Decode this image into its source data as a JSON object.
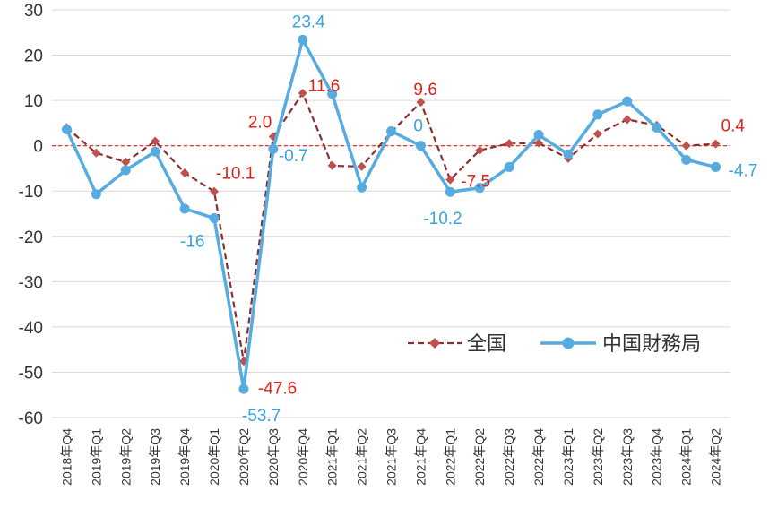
{
  "chart_data": {
    "type": "line",
    "title": "",
    "xlabel": "",
    "ylabel": "",
    "ylim": [
      -60,
      30
    ],
    "yticks": [
      30,
      20,
      10,
      0,
      -10,
      -20,
      -30,
      -40,
      -50,
      -60
    ],
    "grid": "horizontal",
    "legend_position": "bottom-right",
    "categories": [
      "2018年Q4",
      "2019年Q1",
      "2019年Q2",
      "2019年Q3",
      "2019年Q4",
      "2020年Q1",
      "2020年Q2",
      "2020年Q3",
      "2020年Q4",
      "2021年Q1",
      "2021年Q2",
      "2021年Q3",
      "2021年Q4",
      "2022年Q1",
      "2022年Q2",
      "2022年Q3",
      "2022年Q4",
      "2023年Q1",
      "2023年Q2",
      "2023年Q3",
      "2023年Q4",
      "2024年Q1",
      "2024年Q2"
    ],
    "series": [
      {
        "name": "全国",
        "color": "#8B2E2E",
        "marker_color": "#C0504D",
        "line_style": "dashed",
        "marker": "diamond",
        "label_color": "#E0201B",
        "values": [
          4.0,
          -1.6,
          -3.6,
          1.0,
          -6.0,
          -10.1,
          -47.6,
          2.0,
          11.6,
          -4.4,
          -4.6,
          3.0,
          9.6,
          -7.5,
          -1.0,
          0.5,
          0.6,
          -2.8,
          2.6,
          5.8,
          4.5,
          0.0,
          0.4
        ],
        "labels": [
          {
            "index": 5,
            "text": "-10.1"
          },
          {
            "index": 6,
            "text": "-47.6"
          },
          {
            "index": 7,
            "text": "2.0"
          },
          {
            "index": 8,
            "text": "11.6"
          },
          {
            "index": 12,
            "text": "9.6"
          },
          {
            "index": 13,
            "text": "-7.5"
          },
          {
            "index": 22,
            "text": "0.4"
          }
        ]
      },
      {
        "name": "中国財務局",
        "color": "#56ACE0",
        "line_style": "solid",
        "marker": "circle",
        "label_color": "#3AA3DC",
        "values": [
          3.6,
          -10.7,
          -5.4,
          -1.3,
          -13.9,
          -16.0,
          -53.7,
          -0.7,
          23.4,
          11.4,
          -9.2,
          3.2,
          0.0,
          -10.2,
          -9.3,
          -4.7,
          2.4,
          -1.9,
          6.9,
          9.8,
          4.0,
          -3.1,
          -4.7
        ],
        "labels": [
          {
            "index": 5,
            "text": "-16"
          },
          {
            "index": 6,
            "text": "-53.7"
          },
          {
            "index": 7,
            "text": "-0.7"
          },
          {
            "index": 8,
            "text": "23.4"
          },
          {
            "index": 12,
            "text": "0"
          },
          {
            "index": 13,
            "text": "-10.2"
          },
          {
            "index": 22,
            "text": "-4.7"
          }
        ]
      }
    ],
    "reference_line": {
      "value": 0,
      "color": "#E0201B",
      "style": "dashed"
    }
  }
}
